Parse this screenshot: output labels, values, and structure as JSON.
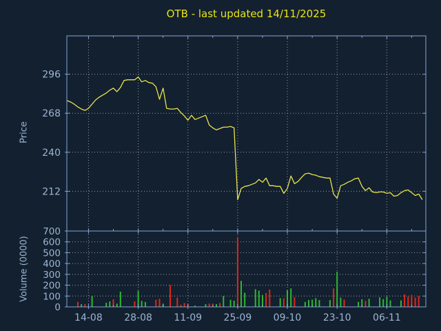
{
  "title": "OTB - last updated 14/11/2025",
  "price_panel": {
    "ylabel": "Price",
    "yticks": [
      296,
      268,
      240,
      212
    ]
  },
  "volume_panel": {
    "ylabel": "Volume (0000)",
    "yticks": [
      700,
      600,
      500,
      400,
      300,
      200,
      100,
      0
    ]
  },
  "x_axis": {
    "labels": [
      "14-08",
      "28-08",
      "11-09",
      "25-09",
      "09-10",
      "23-10",
      "06-11"
    ],
    "tick_days": [
      6,
      20,
      34,
      48,
      62,
      76,
      90
    ],
    "minor_tick_days": [
      13,
      27,
      41,
      55,
      69,
      83,
      97
    ]
  },
  "colors": {
    "background": "#132030",
    "border": "#81a7d4",
    "text": "#9cb6d2",
    "title": "#e8e412",
    "grid": "#99a1ab",
    "price_line": "#e9e44c",
    "up": "#2eb82e",
    "down": "#e02817"
  },
  "chart_data": [
    {
      "type": "line",
      "name": "price",
      "title": "OTB - last updated 14/11/2025",
      "ylabel": "Price",
      "ylim": [
        183.5,
        323.5
      ],
      "yticks": [
        296,
        268,
        240,
        212
      ],
      "x_unit": "trading-day-index (day 0 = 08-08, ticks every 14 days)",
      "grid": true,
      "prices": [
        277,
        276,
        274.5,
        272.5,
        271,
        270,
        271.5,
        274.5,
        277.5,
        279.5,
        281,
        282.5,
        284.5,
        286,
        283.5,
        286.5,
        291.5,
        292,
        292,
        292,
        294,
        290.5,
        291.5,
        290,
        289.5,
        287,
        278,
        286,
        271.5,
        271,
        271,
        271.5,
        268.5,
        266,
        263,
        266.5,
        263.5,
        264.5,
        265.5,
        266.5,
        259.5,
        257.5,
        256,
        257,
        258,
        258,
        258.5,
        257.5,
        206,
        214,
        215.5,
        216,
        217,
        218,
        220.5,
        218.5,
        221.5,
        216,
        216,
        215.5,
        215.5,
        210.5,
        214,
        223,
        217.5,
        219,
        222,
        224.5,
        225,
        224,
        223.5,
        222.5,
        222,
        221.5,
        221.5,
        210,
        207,
        216,
        217,
        218.5,
        219.5,
        221,
        221.5,
        215.5,
        212.5,
        214.5,
        211.5,
        211,
        211.5,
        211.5,
        210.5,
        211,
        208.5,
        209,
        211,
        212.5,
        213,
        211,
        209,
        210,
        206
      ]
    },
    {
      "type": "bar",
      "name": "volume",
      "ylabel": "Volume (0000)",
      "ylim": [
        0,
        700
      ],
      "grid": true,
      "bar_format": "[day_index, volume_0000, color r|g]",
      "bars": [
        [
          3,
          45,
          "r"
        ],
        [
          4,
          25,
          "g"
        ],
        [
          5,
          25,
          "r"
        ],
        [
          7,
          100,
          "g"
        ],
        [
          11,
          38,
          "g"
        ],
        [
          12,
          50,
          "g"
        ],
        [
          13,
          70,
          "r"
        ],
        [
          14,
          30,
          "g"
        ],
        [
          15,
          140,
          "g"
        ],
        [
          19,
          50,
          "r"
        ],
        [
          20,
          148,
          "g"
        ],
        [
          21,
          55,
          "g"
        ],
        [
          22,
          45,
          "g"
        ],
        [
          25,
          65,
          "r"
        ],
        [
          26,
          75,
          "r"
        ],
        [
          27,
          30,
          "g"
        ],
        [
          29,
          200,
          "r"
        ],
        [
          31,
          85,
          "r"
        ],
        [
          32,
          20,
          "r"
        ],
        [
          33,
          35,
          "r"
        ],
        [
          34,
          30,
          "r"
        ],
        [
          36,
          12,
          "g"
        ],
        [
          39,
          25,
          "g"
        ],
        [
          40,
          30,
          "r"
        ],
        [
          41,
          30,
          "r"
        ],
        [
          42,
          25,
          "g"
        ],
        [
          43,
          35,
          "r"
        ],
        [
          44,
          100,
          "g"
        ],
        [
          46,
          65,
          "g"
        ],
        [
          47,
          57,
          "g"
        ],
        [
          48,
          635,
          "r"
        ],
        [
          49,
          240,
          "g"
        ],
        [
          50,
          131,
          "g"
        ],
        [
          53,
          163,
          "g"
        ],
        [
          54,
          150,
          "g"
        ],
        [
          55,
          110,
          "g"
        ],
        [
          56,
          127,
          "r"
        ],
        [
          57,
          160,
          "r"
        ],
        [
          60,
          80,
          "g"
        ],
        [
          61,
          80,
          "r"
        ],
        [
          62,
          152,
          "g"
        ],
        [
          63,
          170,
          "g"
        ],
        [
          64,
          89,
          "r"
        ],
        [
          67,
          46,
          "g"
        ],
        [
          68,
          63,
          "g"
        ],
        [
          69,
          67,
          "g"
        ],
        [
          70,
          80,
          "g"
        ],
        [
          71,
          63,
          "g"
        ],
        [
          74,
          63,
          "g"
        ],
        [
          75,
          170,
          "r"
        ],
        [
          76,
          323,
          "g"
        ],
        [
          77,
          85,
          "g"
        ],
        [
          78,
          68,
          "r"
        ],
        [
          82,
          45,
          "g"
        ],
        [
          83,
          70,
          "g"
        ],
        [
          84,
          55,
          "r"
        ],
        [
          85,
          75,
          "g"
        ],
        [
          88,
          88,
          "g"
        ],
        [
          89,
          72,
          "g"
        ],
        [
          90,
          95,
          "g"
        ],
        [
          91,
          60,
          "g"
        ],
        [
          94,
          60,
          "g"
        ],
        [
          95,
          115,
          "r"
        ],
        [
          96,
          95,
          "r"
        ],
        [
          97,
          110,
          "r"
        ],
        [
          98,
          85,
          "r"
        ],
        [
          99,
          100,
          "r"
        ]
      ]
    }
  ]
}
